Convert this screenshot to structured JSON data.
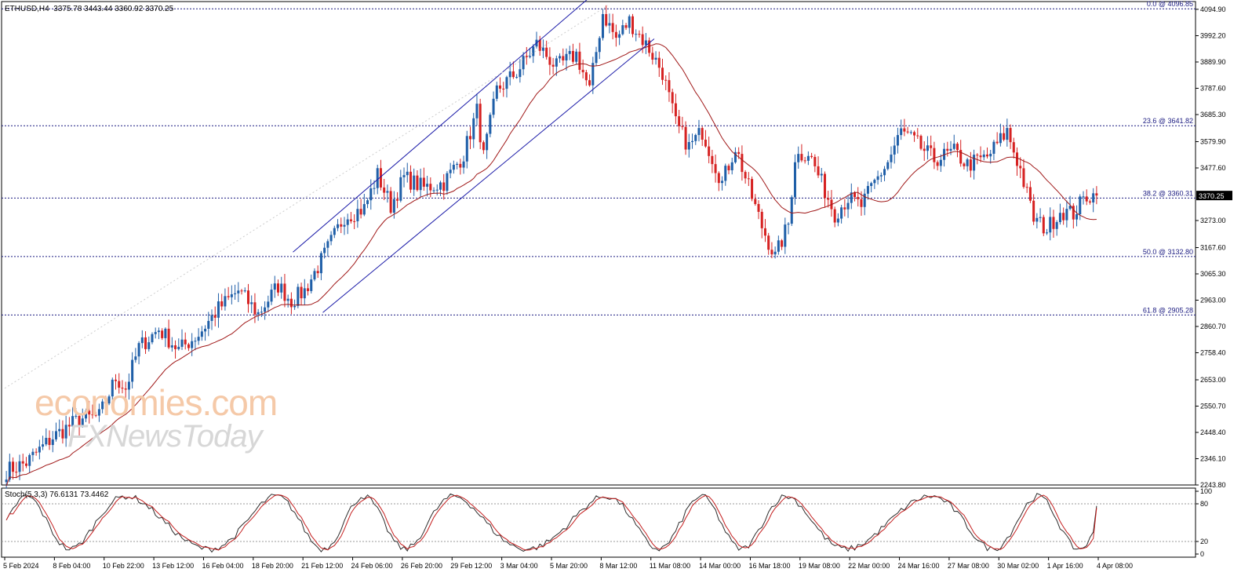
{
  "header": {
    "symbol": "ETHUSD,H4",
    "ohlc": "3375.78 3443.44 3360.92 3370.25"
  },
  "stoch_label": "Stoch(5,3,3) 76.6131 73.4462",
  "watermark": {
    "line1": "economies.com",
    "line2": "FXNewsToday"
  },
  "colors": {
    "bull": "#1f5fa8",
    "bear": "#d62222",
    "ma": "#a01818",
    "channel": "#1a1aa8",
    "fib": "#1a1a80",
    "stoch_main": "#2b2b2b",
    "stoch_signal": "#c41e1e"
  },
  "chart_data": {
    "type": "candlestick",
    "price_axis": {
      "ticks": [
        "4094.90",
        "3992.20",
        "3889.90",
        "3787.60",
        "3685.30",
        "3579.90",
        "3477.60",
        "3273.00",
        "3167.60",
        "3065.30",
        "2963.00",
        "2860.70",
        "2758.40",
        "2653.00",
        "2550.70",
        "2448.40",
        "2346.10",
        "2243.80"
      ],
      "range": [
        2243.8,
        4125
      ]
    },
    "current_price": "3370.25",
    "fibonacci": [
      {
        "label": "0.0 @ 4096.85",
        "price": 4096.85
      },
      {
        "label": "23.6 @ 3641.82",
        "price": 3641.82
      },
      {
        "label": "38.2 @ 3360.31",
        "price": 3360.31
      },
      {
        "label": "50.0 @ 3132.80",
        "price": 3132.8
      },
      {
        "label": "61.8 @ 2905.28",
        "price": 2905.28
      }
    ],
    "x_labels": [
      "5 Feb 2024",
      "8 Feb 04:00",
      "10 Feb 22:00",
      "13 Feb 12:00",
      "16 Feb 04:00",
      "18 Feb 20:00",
      "21 Feb 12:00",
      "24 Feb 06:00",
      "26 Feb 20:00",
      "29 Feb 12:00",
      "3 Mar 04:00",
      "5 Mar 20:00",
      "8 Mar 12:00",
      "11 Mar 08:00",
      "14 Mar 00:00",
      "16 Mar 18:00",
      "19 Mar 08:00",
      "22 Mar 00:00",
      "24 Mar 16:00",
      "27 Mar 08:00",
      "30 Mar 02:00",
      "1 Apr 16:00",
      "4 Apr 08:00"
    ],
    "close_path": [
      [
        0,
        2300
      ],
      [
        6,
        2330
      ],
      [
        14,
        2430
      ],
      [
        22,
        2500
      ],
      [
        28,
        2510
      ],
      [
        33,
        2660
      ],
      [
        36,
        2620
      ],
      [
        40,
        2780
      ],
      [
        46,
        2850
      ],
      [
        52,
        2770
      ],
      [
        58,
        2830
      ],
      [
        64,
        2930
      ],
      [
        70,
        3000
      ],
      [
        76,
        2910
      ],
      [
        82,
        3020
      ],
      [
        86,
        2960
      ],
      [
        90,
        3000
      ],
      [
        96,
        3140
      ],
      [
        102,
        3290
      ],
      [
        108,
        3320
      ],
      [
        112,
        3450
      ],
      [
        116,
        3330
      ],
      [
        120,
        3440
      ],
      [
        126,
        3400
      ],
      [
        132,
        3420
      ],
      [
        138,
        3530
      ],
      [
        142,
        3700
      ],
      [
        144,
        3520
      ],
      [
        148,
        3780
      ],
      [
        154,
        3850
      ],
      [
        160,
        3960
      ],
      [
        166,
        3870
      ],
      [
        172,
        3920
      ],
      [
        176,
        3780
      ],
      [
        180,
        4080
      ],
      [
        184,
        3980
      ],
      [
        188,
        4050
      ],
      [
        194,
        3940
      ],
      [
        198,
        3850
      ],
      [
        202,
        3650
      ],
      [
        206,
        3560
      ],
      [
        210,
        3620
      ],
      [
        216,
        3420
      ],
      [
        220,
        3560
      ],
      [
        224,
        3400
      ],
      [
        228,
        3250
      ],
      [
        232,
        3130
      ],
      [
        236,
        3260
      ],
      [
        238,
        3520
      ],
      [
        242,
        3540
      ],
      [
        246,
        3420
      ],
      [
        250,
        3300
      ],
      [
        254,
        3360
      ],
      [
        258,
        3330
      ],
      [
        262,
        3420
      ],
      [
        266,
        3500
      ],
      [
        270,
        3620
      ],
      [
        274,
        3580
      ],
      [
        280,
        3510
      ],
      [
        286,
        3540
      ],
      [
        290,
        3490
      ],
      [
        296,
        3520
      ],
      [
        302,
        3620
      ],
      [
        306,
        3470
      ],
      [
        310,
        3280
      ],
      [
        314,
        3240
      ],
      [
        318,
        3310
      ],
      [
        322,
        3300
      ],
      [
        326,
        3370
      ]
    ],
    "stoch_levels": [
      100,
      80,
      20,
      0
    ],
    "stoch_last": [
      76.6131,
      73.4462
    ]
  }
}
